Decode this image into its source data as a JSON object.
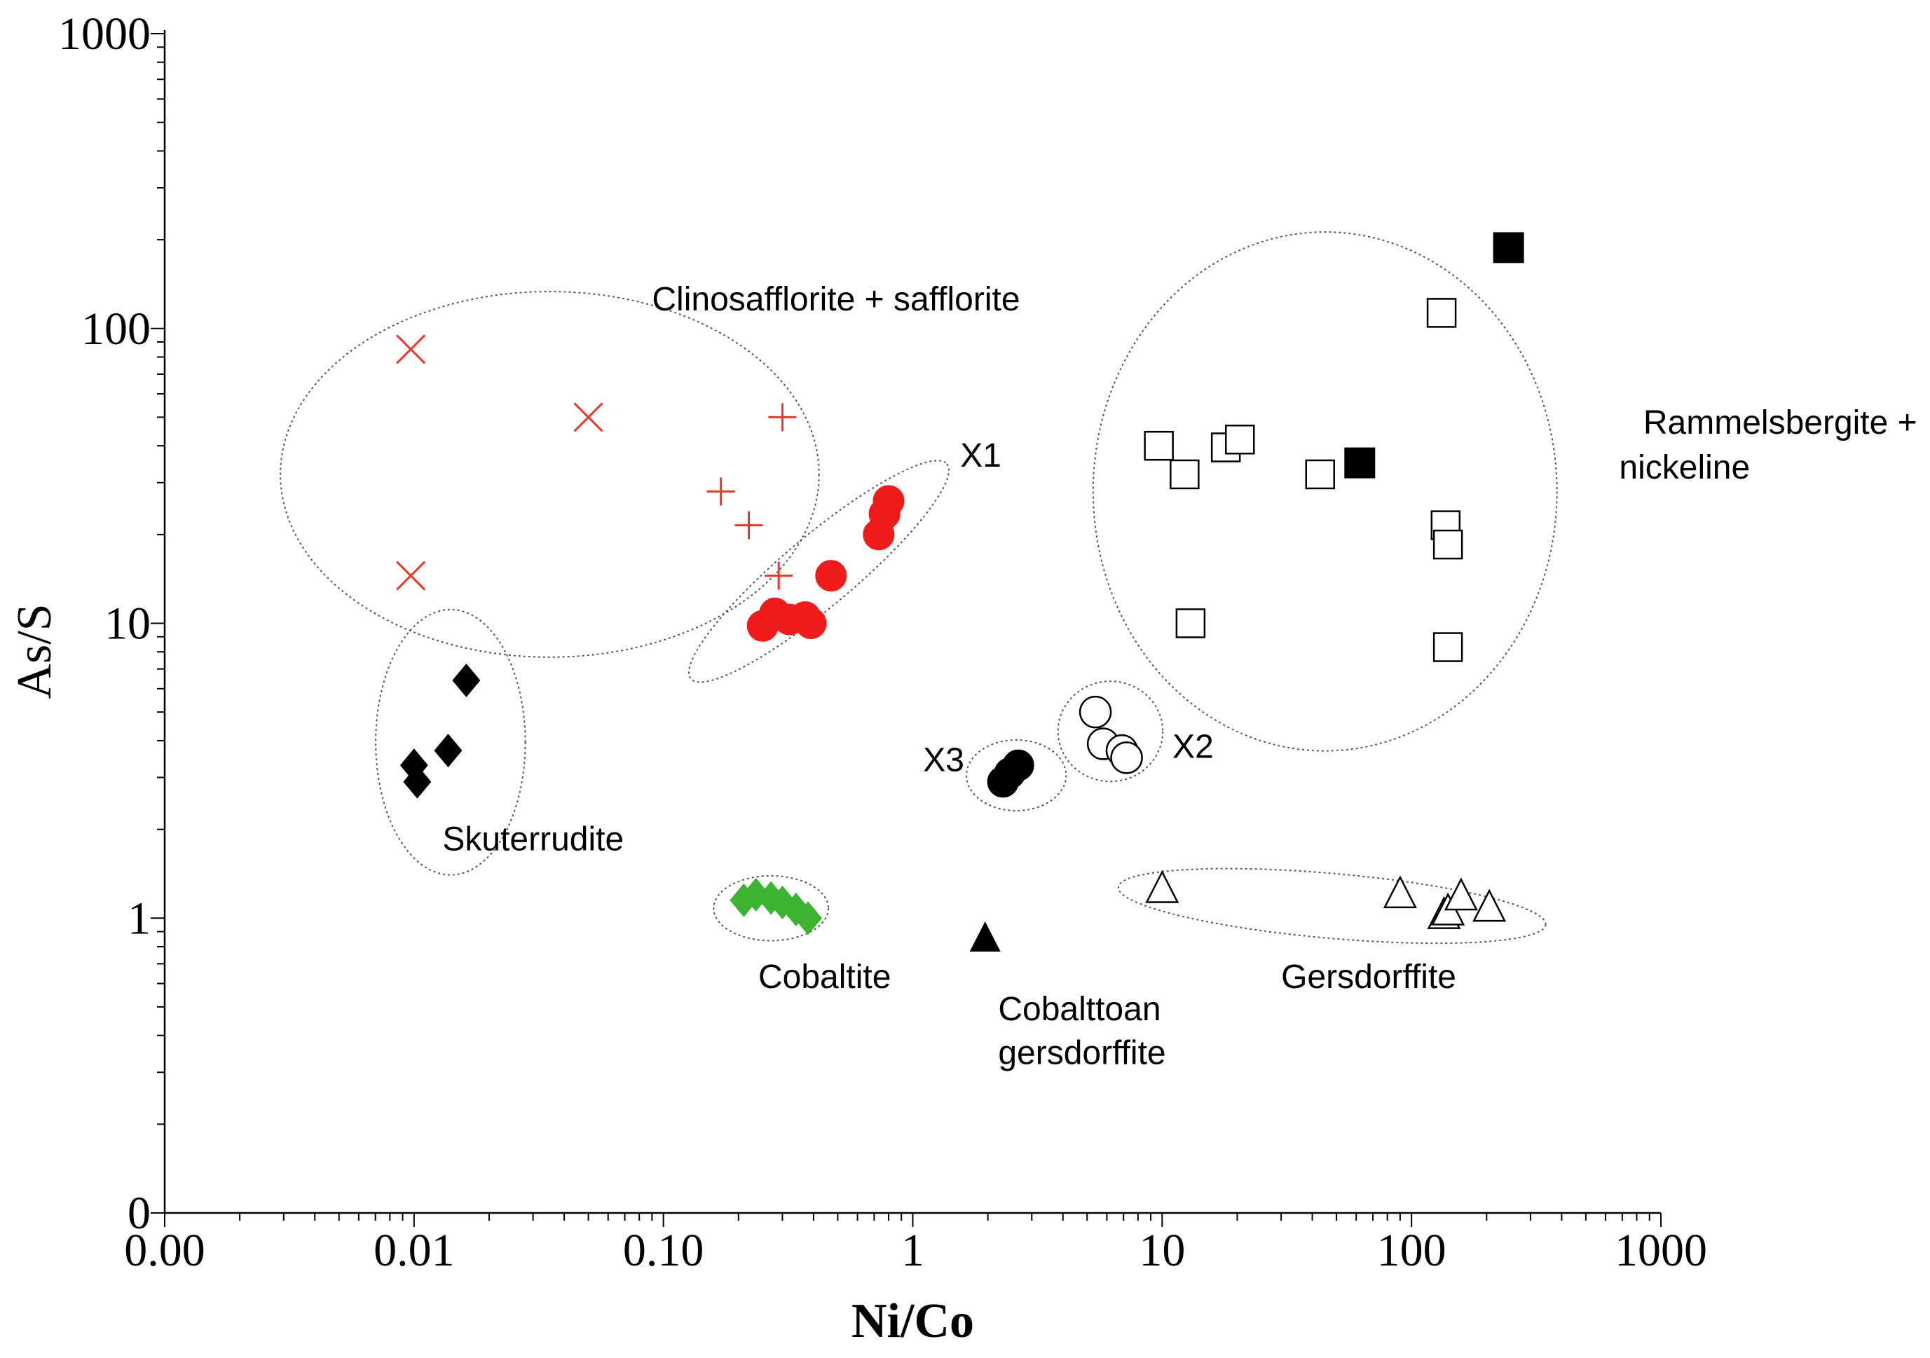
{
  "chart_data": {
    "type": "scatter",
    "title": "",
    "xlabel": "Ni/Co",
    "ylabel": "As/S",
    "xscale": "log",
    "yscale": "log",
    "xlim": [
      0.001,
      1000
    ],
    "ylim": [
      0.1,
      1000
    ],
    "grid": false,
    "x_tick_labels": [
      {
        "value": 0.001,
        "label": "0.00"
      },
      {
        "value": 0.01,
        "label": "0.01"
      },
      {
        "value": 0.1,
        "label": "0.10"
      },
      {
        "value": 1,
        "label": "1"
      },
      {
        "value": 10,
        "label": "10"
      },
      {
        "value": 100,
        "label": "100"
      },
      {
        "value": 1000,
        "label": "1000"
      }
    ],
    "y_tick_labels": [
      {
        "value": 0.1,
        "label": "0"
      },
      {
        "value": 1,
        "label": "1"
      },
      {
        "value": 10,
        "label": "10"
      },
      {
        "value": 100,
        "label": "100"
      },
      {
        "value": 1000,
        "label": "1000"
      }
    ],
    "series": [
      {
        "name": "Clinosafflorite (x)",
        "marker": "x",
        "color": "#e8392b",
        "points": [
          [
            0.0097,
            85
          ],
          [
            0.05,
            50
          ],
          [
            0.0097,
            14.5
          ]
        ]
      },
      {
        "name": "Safflorite (+)",
        "marker": "plus",
        "color": "#e8392b",
        "points": [
          [
            0.3,
            50
          ],
          [
            0.17,
            28
          ],
          [
            0.22,
            21.5
          ],
          [
            0.29,
            14.5
          ]
        ]
      },
      {
        "name": "X1",
        "marker": "circle-filled",
        "color": "#f01c1c",
        "points": [
          [
            0.25,
            9.8
          ],
          [
            0.28,
            10.8
          ],
          [
            0.32,
            10.3
          ],
          [
            0.37,
            10.5
          ],
          [
            0.39,
            10
          ],
          [
            0.47,
            14.5
          ],
          [
            0.73,
            20
          ],
          [
            0.77,
            23.5
          ],
          [
            0.8,
            26
          ]
        ]
      },
      {
        "name": "Skutterudite",
        "marker": "diamond-filled",
        "color": "#000000",
        "points": [
          [
            0.01,
            3.3
          ],
          [
            0.0103,
            2.9
          ],
          [
            0.0137,
            3.7
          ],
          [
            0.0162,
            6.4
          ]
        ]
      },
      {
        "name": "X3",
        "marker": "circle-filled",
        "color": "#000000",
        "points": [
          [
            2.3,
            2.9
          ],
          [
            2.45,
            3.1
          ],
          [
            2.65,
            3.3
          ]
        ]
      },
      {
        "name": "X2",
        "marker": "circle-open",
        "color": "#000000",
        "points": [
          [
            5.4,
            5
          ],
          [
            5.8,
            3.9
          ],
          [
            6.9,
            3.7
          ],
          [
            7.2,
            3.5
          ]
        ]
      },
      {
        "name": "Cobaltite",
        "marker": "diamond-filled",
        "color": "#3cb432",
        "points": [
          [
            0.21,
            1.15
          ],
          [
            0.235,
            1.2
          ],
          [
            0.27,
            1.17
          ],
          [
            0.3,
            1.13
          ],
          [
            0.34,
            1.07
          ],
          [
            0.38,
            1.0
          ]
        ]
      },
      {
        "name": "Cobalttoan gersdorffite",
        "marker": "triangle-filled",
        "color": "#000000",
        "points": [
          [
            1.95,
            0.85
          ]
        ]
      },
      {
        "name": "Gersdorffite",
        "marker": "triangle-open",
        "color": "#000000",
        "points": [
          [
            10,
            1.25
          ],
          [
            90,
            1.2
          ],
          [
            135,
            1.02
          ],
          [
            140,
            1.05
          ],
          [
            158,
            1.18
          ],
          [
            205,
            1.08
          ]
        ]
      },
      {
        "name": "Rammelsbergite + nickeline (open)",
        "marker": "square-open",
        "color": "#000000",
        "points": [
          [
            132,
            113
          ],
          [
            9.7,
            40
          ],
          [
            12.3,
            32
          ],
          [
            18,
            39.5
          ],
          [
            20.5,
            42
          ],
          [
            43,
            32
          ],
          [
            137,
            21.5
          ],
          [
            140,
            18.5
          ],
          [
            13,
            10
          ],
          [
            140,
            8.3
          ]
        ]
      },
      {
        "name": "Rammelsbergite + nickeline (filled)",
        "marker": "square-filled",
        "color": "#000000",
        "points": [
          [
            245,
            188
          ],
          [
            62,
            35
          ]
        ]
      }
    ],
    "annotations": [
      {
        "text": "Clinosafflorite + safflorite",
        "x": 0.09,
        "y": 115
      },
      {
        "text": "X1",
        "x": 1.55,
        "y": 34
      },
      {
        "text": "Rammelsbergite +",
        "x": 850,
        "y": 44
      },
      {
        "text": "nickeline",
        "x": 680,
        "y": 31
      },
      {
        "text": "X2",
        "x": 11,
        "y": 3.5
      },
      {
        "text": "X3",
        "x": 1.1,
        "y": 3.15
      },
      {
        "text": "Skuterrudite",
        "x": 0.013,
        "y": 1.7
      },
      {
        "text": "Cobaltite",
        "x": 0.24,
        "y": 0.58
      },
      {
        "text": "Cobalttoan",
        "x": 2.2,
        "y": 0.45
      },
      {
        "text": "gersdorffite",
        "x": 2.2,
        "y": 0.32
      },
      {
        "text": "Gersdorffite",
        "x": 30,
        "y": 0.58
      }
    ],
    "ellipses": [
      {
        "group": "Clinosafflorite + safflorite",
        "cx": 0.035,
        "cy": 32,
        "rx_decades": 1.08,
        "ry_decades": 0.62,
        "rotation_deg": 0
      },
      {
        "group": "X1",
        "cx": 0.42,
        "cy": 15,
        "rx_decades": 0.67,
        "ry_decades": 0.12,
        "rotation_deg": -40
      },
      {
        "group": "Skutterudite",
        "cx": 0.014,
        "cy": 3.95,
        "rx_decades": 0.3,
        "ry_decades": 0.45,
        "rotation_deg": 0
      },
      {
        "group": "X3",
        "cx": 2.6,
        "cy": 3.05,
        "rx_decades": 0.2,
        "ry_decades": 0.12,
        "rotation_deg": 0
      },
      {
        "group": "X2",
        "cx": 6.2,
        "cy": 4.3,
        "rx_decades": 0.21,
        "ry_decades": 0.17,
        "rotation_deg": 0
      },
      {
        "group": "Rammelsbergite + nickeline",
        "cx": 45,
        "cy": 28,
        "rx_decades": 0.93,
        "ry_decades": 0.88,
        "rotation_deg": 0
      },
      {
        "group": "Gersdorffite",
        "cx": 48,
        "cy": 1.1,
        "rx_decades": 0.86,
        "ry_decades": 0.11,
        "rotation_deg": 5
      },
      {
        "group": "Cobaltite",
        "cx": 0.27,
        "cy": 1.08,
        "rx_decades": 0.23,
        "ry_decades": 0.11,
        "rotation_deg": 0
      }
    ]
  }
}
